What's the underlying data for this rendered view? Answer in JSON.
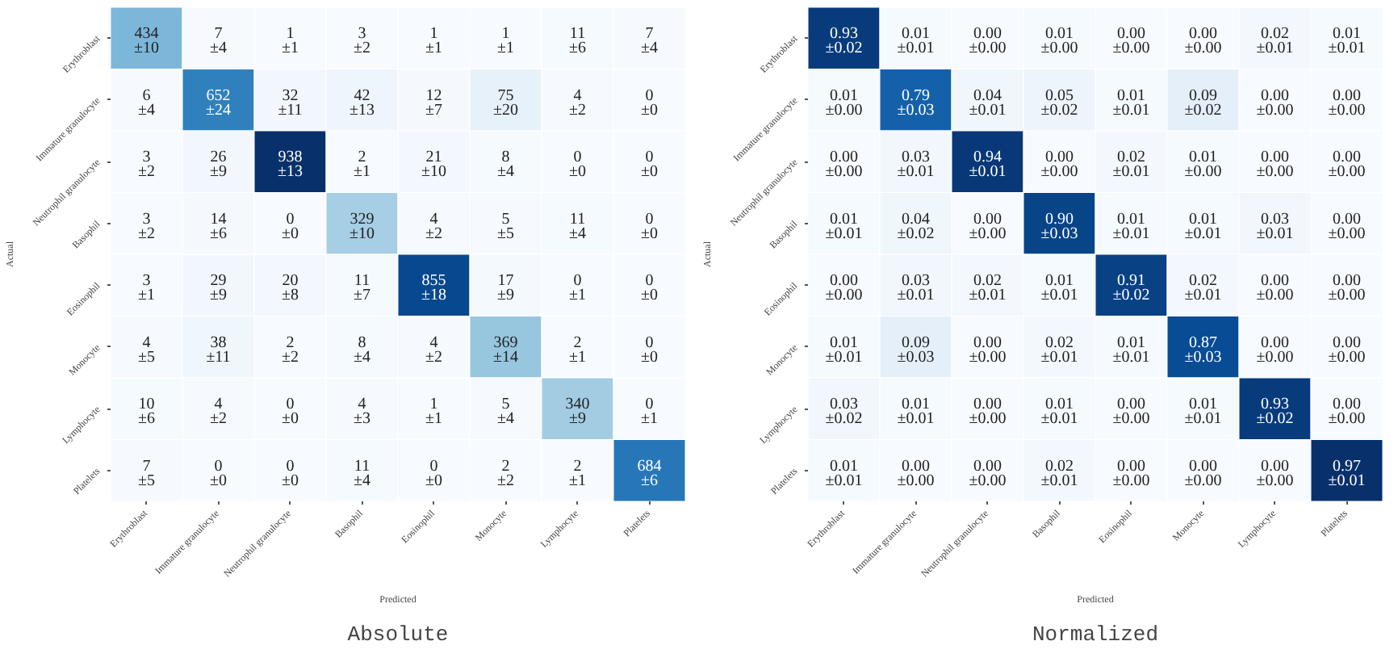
{
  "chart_data": [
    {
      "type": "heatmap",
      "title": "Absolute",
      "xlabel": "Predicted",
      "ylabel": "Actual",
      "categories": [
        "Erythroblast",
        "Immature granulocyte",
        "Neutrophil granulocyte",
        "Basophil",
        "Eosinophil",
        "Monocyte",
        "Lymphocyte",
        "Platelets"
      ],
      "y_categories": [
        "Erythroblast",
        "Immature granulocyte",
        "Neutrophil granulocyte",
        "Basophil",
        "Eosinophil",
        "Monocyte",
        "Lymphocyte",
        "Platelets"
      ],
      "cells": [
        [
          434,
          7,
          1,
          3,
          1,
          1,
          11,
          7
        ],
        [
          6,
          652,
          32,
          42,
          12,
          75,
          4,
          0
        ],
        [
          3,
          26,
          938,
          2,
          21,
          8,
          0,
          0
        ],
        [
          3,
          14,
          0,
          329,
          4,
          5,
          11,
          0
        ],
        [
          3,
          29,
          20,
          11,
          855,
          17,
          0,
          0
        ],
        [
          4,
          38,
          2,
          8,
          4,
          369,
          2,
          0
        ],
        [
          10,
          4,
          0,
          4,
          1,
          5,
          340,
          0
        ],
        [
          7,
          0,
          0,
          11,
          0,
          2,
          2,
          684
        ]
      ],
      "cell_labels": [
        [
          "434",
          "7",
          "1",
          "3",
          "1",
          "1",
          "11",
          "7"
        ],
        [
          "6",
          "652",
          "32",
          "42",
          "12",
          "75",
          "4",
          "0"
        ],
        [
          "3",
          "26",
          "938",
          "2",
          "21",
          "8",
          "0",
          "0"
        ],
        [
          "3",
          "14",
          "0",
          "329",
          "4",
          "5",
          "11",
          "0"
        ],
        [
          "3",
          "29",
          "20",
          "11",
          "855",
          "17",
          "0",
          "0"
        ],
        [
          "4",
          "38",
          "2",
          "8",
          "4",
          "369",
          "2",
          "0"
        ],
        [
          "10",
          "4",
          "0",
          "4",
          "1",
          "5",
          "340",
          "0"
        ],
        [
          "7",
          "0",
          "0",
          "11",
          "0",
          "2",
          "2",
          "684"
        ]
      ],
      "annotations": [
        "±10",
        "±4",
        "±1",
        "±2",
        "±1",
        "±1",
        "±6",
        "±4",
        "±4",
        "±24",
        "±11",
        "±13",
        "±7",
        "±20",
        "±2",
        "±0",
        "±2",
        "±9",
        "±13",
        "±1",
        "±10",
        "±4",
        "±0",
        "±0",
        "±2",
        "±6",
        "±0",
        "±10",
        "±2",
        "±5",
        "±4",
        "±0",
        "±1",
        "±9",
        "±8",
        "±7",
        "±18",
        "±9",
        "±1",
        "±0",
        "±5",
        "±11",
        "±2",
        "±4",
        "±2",
        "±14",
        "±1",
        "±0",
        "±6",
        "±2",
        "±0",
        "±3",
        "±1",
        "±4",
        "±9",
        "±1",
        "±5",
        "±0",
        "±0",
        "±4",
        "±0",
        "±2",
        "±1",
        "±6"
      ]
    },
    {
      "type": "heatmap",
      "title": "Normalized",
      "xlabel": "Predicted",
      "ylabel": "Actual",
      "categories": [
        "Erythroblast",
        "Immature granulocyte",
        "Neutrophil granulocyte",
        "Basophil",
        "Eosinophil",
        "Monocyte",
        "Lymphocyte",
        "Platelets"
      ],
      "y_categories": [
        "Erythroblast",
        "Immature granulocyte",
        "Neutrophil granulocyte",
        "Basophil",
        "Eosinophil",
        "Monocyte",
        "Lymphocyte",
        "Platelets"
      ],
      "cells": [
        [
          0.93,
          0.01,
          0.0,
          0.01,
          0.0,
          0.0,
          0.02,
          0.01
        ],
        [
          0.01,
          0.79,
          0.04,
          0.05,
          0.01,
          0.09,
          0.0,
          0.0
        ],
        [
          0.0,
          0.03,
          0.94,
          0.0,
          0.02,
          0.01,
          0.0,
          0.0
        ],
        [
          0.01,
          0.04,
          0.0,
          0.9,
          0.01,
          0.01,
          0.03,
          0.0
        ],
        [
          0.0,
          0.03,
          0.02,
          0.01,
          0.91,
          0.02,
          0.0,
          0.0
        ],
        [
          0.01,
          0.09,
          0.0,
          0.02,
          0.01,
          0.87,
          0.0,
          0.0
        ],
        [
          0.03,
          0.01,
          0.0,
          0.01,
          0.0,
          0.01,
          0.93,
          0.0
        ],
        [
          0.01,
          0.0,
          0.0,
          0.02,
          0.0,
          0.0,
          0.0,
          0.97
        ]
      ],
      "cell_labels": [
        [
          "0.93",
          "0.01",
          "0.00",
          "0.01",
          "0.00",
          "0.00",
          "0.02",
          "0.01"
        ],
        [
          "0.01",
          "0.79",
          "0.04",
          "0.05",
          "0.01",
          "0.09",
          "0.00",
          "0.00"
        ],
        [
          "0.00",
          "0.03",
          "0.94",
          "0.00",
          "0.02",
          "0.01",
          "0.00",
          "0.00"
        ],
        [
          "0.01",
          "0.04",
          "0.00",
          "0.90",
          "0.01",
          "0.01",
          "0.03",
          "0.00"
        ],
        [
          "0.00",
          "0.03",
          "0.02",
          "0.01",
          "0.91",
          "0.02",
          "0.00",
          "0.00"
        ],
        [
          "0.01",
          "0.09",
          "0.00",
          "0.02",
          "0.01",
          "0.87",
          "0.00",
          "0.00"
        ],
        [
          "0.03",
          "0.01",
          "0.00",
          "0.01",
          "0.00",
          "0.01",
          "0.93",
          "0.00"
        ],
        [
          "0.01",
          "0.00",
          "0.00",
          "0.02",
          "0.00",
          "0.00",
          "0.00",
          "0.97"
        ]
      ],
      "annotations": [
        "±0.02",
        "±0.01",
        "±0.00",
        "±0.00",
        "±0.00",
        "±0.00",
        "±0.01",
        "±0.01",
        "±0.00",
        "±0.03",
        "±0.01",
        "±0.02",
        "±0.01",
        "±0.02",
        "±0.00",
        "±0.00",
        "±0.00",
        "±0.01",
        "±0.01",
        "±0.00",
        "±0.01",
        "±0.00",
        "±0.00",
        "±0.00",
        "±0.01",
        "±0.02",
        "±0.00",
        "±0.03",
        "±0.01",
        "±0.01",
        "±0.01",
        "±0.00",
        "±0.00",
        "±0.01",
        "±0.01",
        "±0.01",
        "±0.02",
        "±0.01",
        "±0.00",
        "±0.00",
        "±0.01",
        "±0.03",
        "±0.00",
        "±0.01",
        "±0.01",
        "±0.03",
        "±0.00",
        "±0.00",
        "±0.02",
        "±0.01",
        "±0.00",
        "±0.01",
        "±0.00",
        "±0.01",
        "±0.02",
        "±0.00",
        "±0.01",
        "±0.00",
        "±0.00",
        "±0.01",
        "±0.00",
        "±0.00",
        "±0.00",
        "±0.01"
      ]
    }
  ]
}
